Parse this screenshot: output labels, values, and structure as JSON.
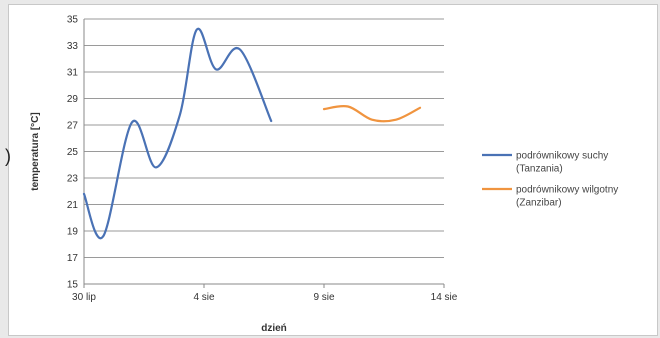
{
  "chart_data": {
    "type": "line",
    "title": "",
    "xlabel": "dzień",
    "ylabel": "temperatura [°C]",
    "ylim": [
      15,
      35
    ],
    "yticks": [
      15,
      17,
      19,
      21,
      23,
      25,
      27,
      29,
      31,
      33,
      35
    ],
    "xticks": [
      "30 lip",
      "4 sie",
      "9 sie",
      "14 sie"
    ],
    "xlim_days": [
      0,
      15
    ],
    "grid": true,
    "legend_position": "right",
    "series": [
      {
        "name": "podrównikowy suchy (Tanzania)",
        "legend_lines": [
          "podrównikowy suchy",
          "(Tanzania)"
        ],
        "color": "#4a72b5",
        "x": [
          0,
          0.8,
          2,
          3,
          4,
          4.7,
          5.5,
          6.5,
          7.8
        ],
        "values": [
          21.8,
          18.6,
          27.2,
          23.8,
          27.8,
          34.2,
          31.2,
          32.7,
          27.3
        ]
      },
      {
        "name": "podrównikowy wilgotny (Zanzibar)",
        "legend_lines": [
          "podrównikowy wilgotny",
          "(Zanzibar)"
        ],
        "color": "#f0943f",
        "x": [
          10,
          11,
          12,
          13,
          14
        ],
        "values": [
          28.2,
          28.4,
          27.4,
          27.4,
          28.3
        ]
      }
    ]
  },
  "side_mark": ")"
}
